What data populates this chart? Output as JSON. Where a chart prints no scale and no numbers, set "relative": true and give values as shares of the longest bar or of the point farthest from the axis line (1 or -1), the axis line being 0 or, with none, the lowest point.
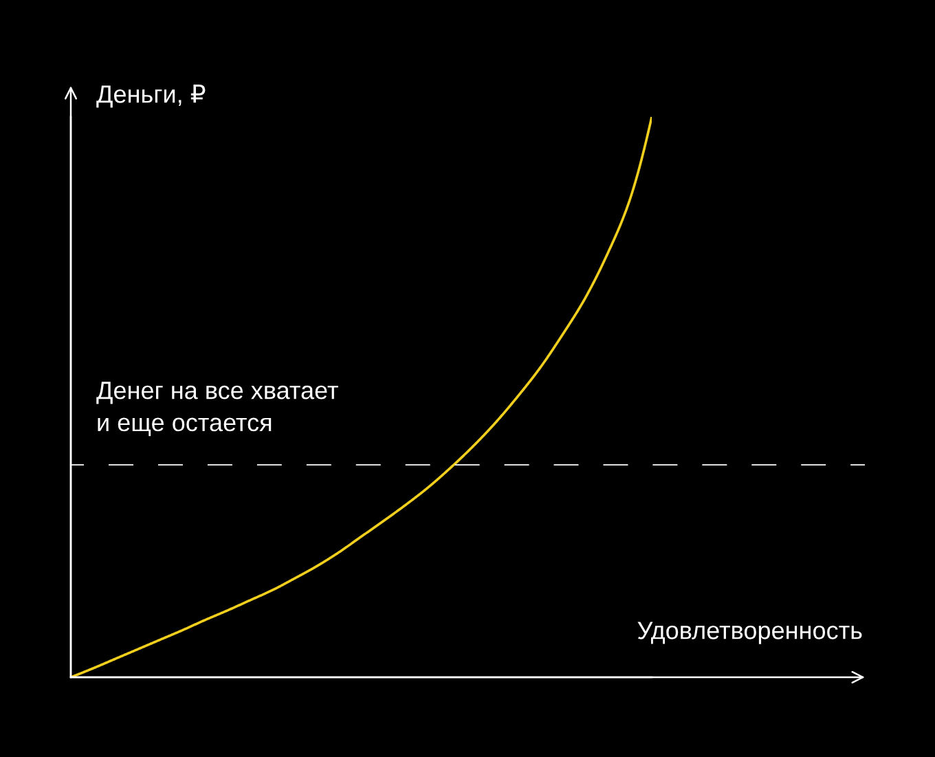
{
  "chart_data": {
    "type": "line",
    "relative": true,
    "xlabel": "Удовлетворенность",
    "ylabel": "Деньги, ₽",
    "categories": [
      null,
      null,
      null,
      null,
      null,
      null,
      null,
      null,
      null,
      null,
      null,
      null,
      null,
      null,
      null,
      null,
      null,
      null,
      null,
      null,
      null,
      null,
      null,
      null,
      null,
      null,
      null
    ],
    "series": [
      {
        "color": "#f2cf1d",
        "values": [
          0,
          0.016,
          0.033,
          0.05,
          0.067,
          0.084,
          0.102,
          0.119,
          0.137,
          0.155,
          0.176,
          0.198,
          0.223,
          0.251,
          0.279,
          0.308,
          0.339,
          0.374,
          0.412,
          0.454,
          0.501,
          0.552,
          0.611,
          0.675,
          0.754,
          0.85,
          1
        ]
      }
    ],
    "ref_lines": [
      {
        "axis": "y",
        "value": 0.379,
        "label": "Денег на все хватает\nи еще остается",
        "color": "#ffffff",
        "line_style": "dashed"
      }
    ],
    "line_style": "solid"
  }
}
